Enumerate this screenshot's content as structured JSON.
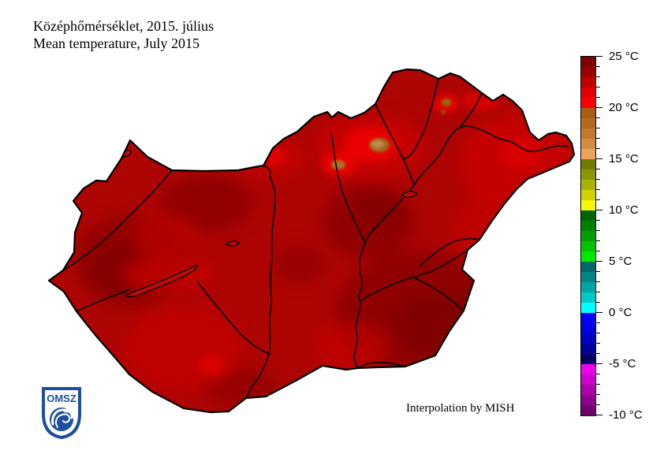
{
  "title": {
    "line1_hu": "Középhőmérséklet, 2015. július",
    "line2_en": "Mean temperature, July 2015"
  },
  "footer": {
    "annotation": "Interpolation by MISH"
  },
  "logo": {
    "label": "OMSZ",
    "color": "#1d4f9e"
  },
  "map": {
    "country": "Hungary",
    "base_color": "#ad0404",
    "darker_patch_color": "#8e0202",
    "brighter_patch_color": "#ca0707",
    "hot_spot_color": "#f10404",
    "cool_mountain_spot_color": "#b07a2a",
    "line_color": "#000000"
  },
  "legend": {
    "unit": "°C",
    "max": 25,
    "min": -10,
    "cell_step_deg": 1,
    "labels": [
      {
        "value": 25,
        "text": "25 °C"
      },
      {
        "value": 20,
        "text": "20 °C"
      },
      {
        "value": 15,
        "text": "15 °C"
      },
      {
        "value": 10,
        "text": "10 °C"
      },
      {
        "value": 5,
        "text": "5 °C"
      },
      {
        "value": 0,
        "text": "0 °C"
      },
      {
        "value": -5,
        "text": "-5 °C"
      },
      {
        "value": -10,
        "text": "-10 °C"
      }
    ],
    "cell_colors_top_to_bottom": [
      "#7c0000",
      "#980000",
      "#c00000",
      "#e40000",
      "#fc0000",
      "#a85c14",
      "#b26a20",
      "#c07a2e",
      "#cf8c42",
      "#eba35c",
      "#6f7c00",
      "#8c9600",
      "#aab200",
      "#d2d200",
      "#f6f600",
      "#006400",
      "#008000",
      "#00a000",
      "#00c400",
      "#00e800",
      "#006868",
      "#008484",
      "#00a4a4",
      "#00caca",
      "#00ffff",
      "#0000fa",
      "#0000e0",
      "#0000c0",
      "#000098",
      "#000064",
      "#ee00ee",
      "#cc00cc",
      "#aa00aa",
      "#8c008c",
      "#6e006e"
    ]
  }
}
